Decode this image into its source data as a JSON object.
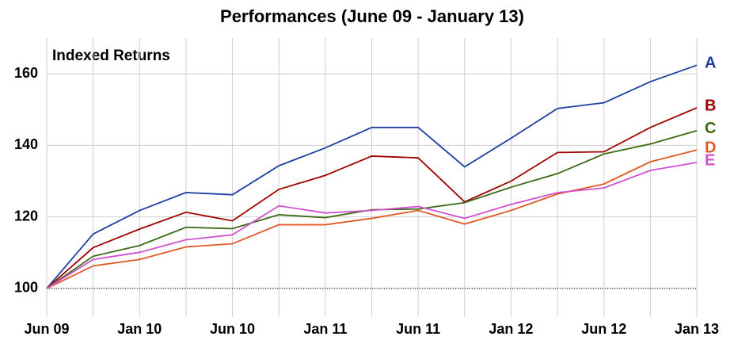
{
  "chart_data": {
    "type": "line",
    "title": "Performances (June 09 - January 13)",
    "annotation": "Indexed Returns",
    "categories": [
      "Jun 09",
      null,
      "Jan 10",
      null,
      "Jun 10",
      null,
      "Jan 11",
      null,
      "Jun 11",
      null,
      "Jan 12",
      null,
      "Jun 12",
      null,
      "Jan 13"
    ],
    "series": [
      {
        "name": "A",
        "color": "#1f3f9f",
        "values": [
          100,
          115.2,
          121.8,
          126.8,
          126.2,
          134.3,
          139.3,
          145,
          145,
          134,
          142,
          150.3,
          151.9,
          157.8,
          162.4
        ]
      },
      {
        "name": "B",
        "color": "#a00000",
        "values": [
          100,
          111.4,
          116.6,
          121.3,
          118.9,
          127.7,
          131.6,
          137,
          136.5,
          124.2,
          130,
          138,
          138.2,
          145,
          150.5
        ]
      },
      {
        "name": "C",
        "color": "#3a6b14",
        "values": [
          100,
          109,
          112,
          117.1,
          116.7,
          120.6,
          119.8,
          122,
          122.2,
          124,
          128.3,
          132.1,
          137.6,
          140.4,
          144.1
        ]
      },
      {
        "name": "D",
        "color": "#e05a28",
        "values": [
          100,
          106.3,
          108.1,
          111.6,
          112.5,
          117.8,
          117.8,
          119.6,
          121.8,
          118,
          121.8,
          126.4,
          129.2,
          135.4,
          138.7
        ]
      },
      {
        "name": "E",
        "color": "#d050d0",
        "values": [
          100,
          108.1,
          110.1,
          113.6,
          115,
          123.1,
          121.1,
          121.8,
          122.9,
          119.6,
          123.5,
          126.8,
          128.1,
          133,
          135.2
        ]
      }
    ],
    "ylim": [
      92,
      170
    ],
    "yticks": [
      100,
      120,
      140,
      160
    ],
    "baseline": 100,
    "grid": true
  }
}
